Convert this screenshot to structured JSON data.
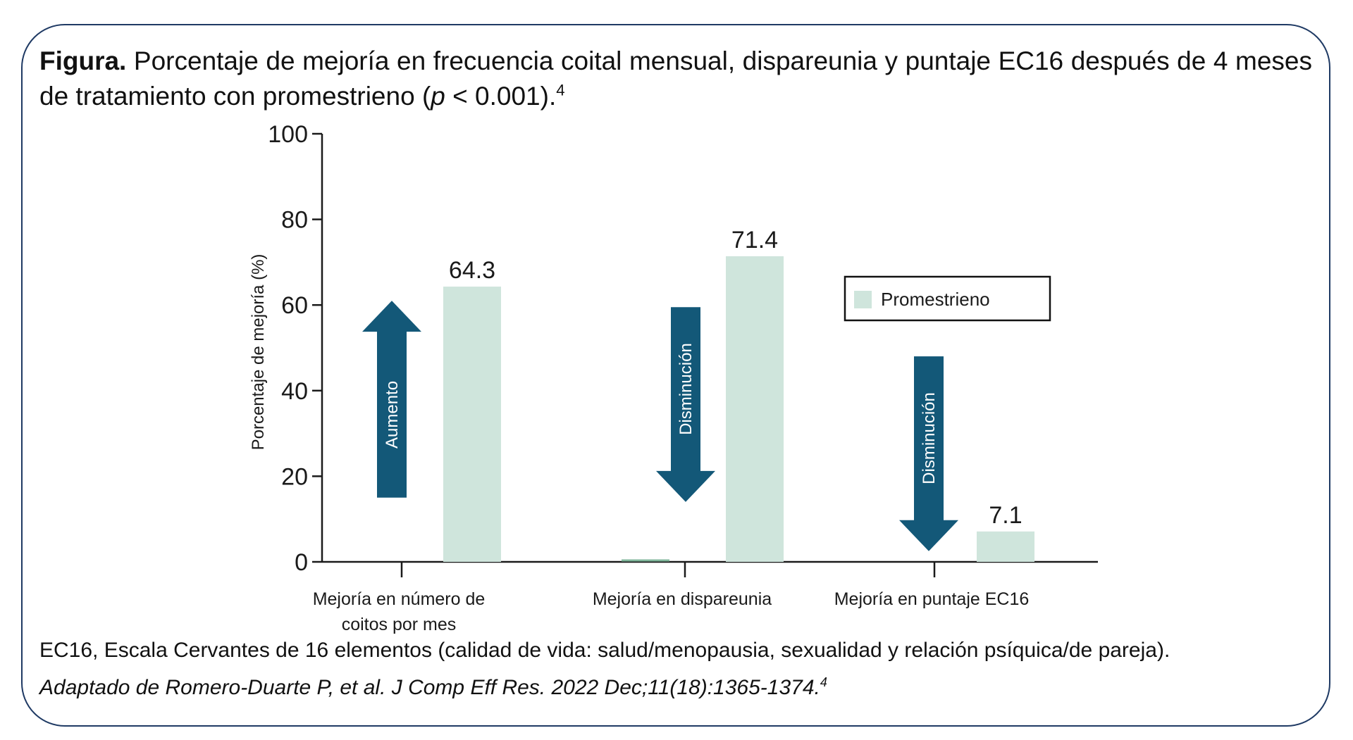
{
  "caption": {
    "bold_label": "Figura.",
    "text_before_p": " Porcentaje de mejoría en frecuencia coital mensual, dispareunia y puntaje EC16 después de 4 meses de tratamiento con promestrieno (",
    "p_symbol": "p",
    "text_after_p": " < 0.001).",
    "reference": "4"
  },
  "chart_data": {
    "type": "bar",
    "ylabel": "Porcentaje de mejoría (%)",
    "ylim": [
      0,
      100
    ],
    "yticks": [
      "0",
      "20",
      "40",
      "60",
      "80",
      "100"
    ],
    "categories": [
      [
        "Mejoría en número de",
        "coitos por mes"
      ],
      [
        "Mejoría en dispareunia"
      ],
      [
        "Mejoría en puntaje EC16"
      ]
    ],
    "series": [
      {
        "name": "Promestrieno",
        "values": [
          64.3,
          71.4,
          7.1
        ],
        "value_labels": [
          "64.3",
          "71.4",
          "7.1"
        ],
        "color": "#cfe5dc"
      }
    ],
    "annotations": [
      {
        "text": "Aumento",
        "direction": "up",
        "from": 15,
        "to": 61,
        "color": "#135878"
      },
      {
        "text": "Disminución",
        "direction": "down",
        "from": 59.5,
        "to": 14,
        "color": "#135878"
      },
      {
        "text": "Disminución",
        "direction": "down",
        "from": 48,
        "to": 2.5,
        "color": "#135878"
      }
    ],
    "legend_placement": "right",
    "grid": false
  },
  "footnote": "EC16, Escala Cervantes de 16 elementos (calidad de vida: salud/menopausia, sexualidad y relación psíquica/de pareja).",
  "source": {
    "text": "Adaptado de Romero-Duarte P, et al. J Comp Eff Res. 2022 Dec;11(18):1365-1374.",
    "reference": "4"
  },
  "colors": {
    "frame": "#1f3a64",
    "bar": "#cfe5dc",
    "arrow": "#135878",
    "axis": "#1a1a1a"
  }
}
